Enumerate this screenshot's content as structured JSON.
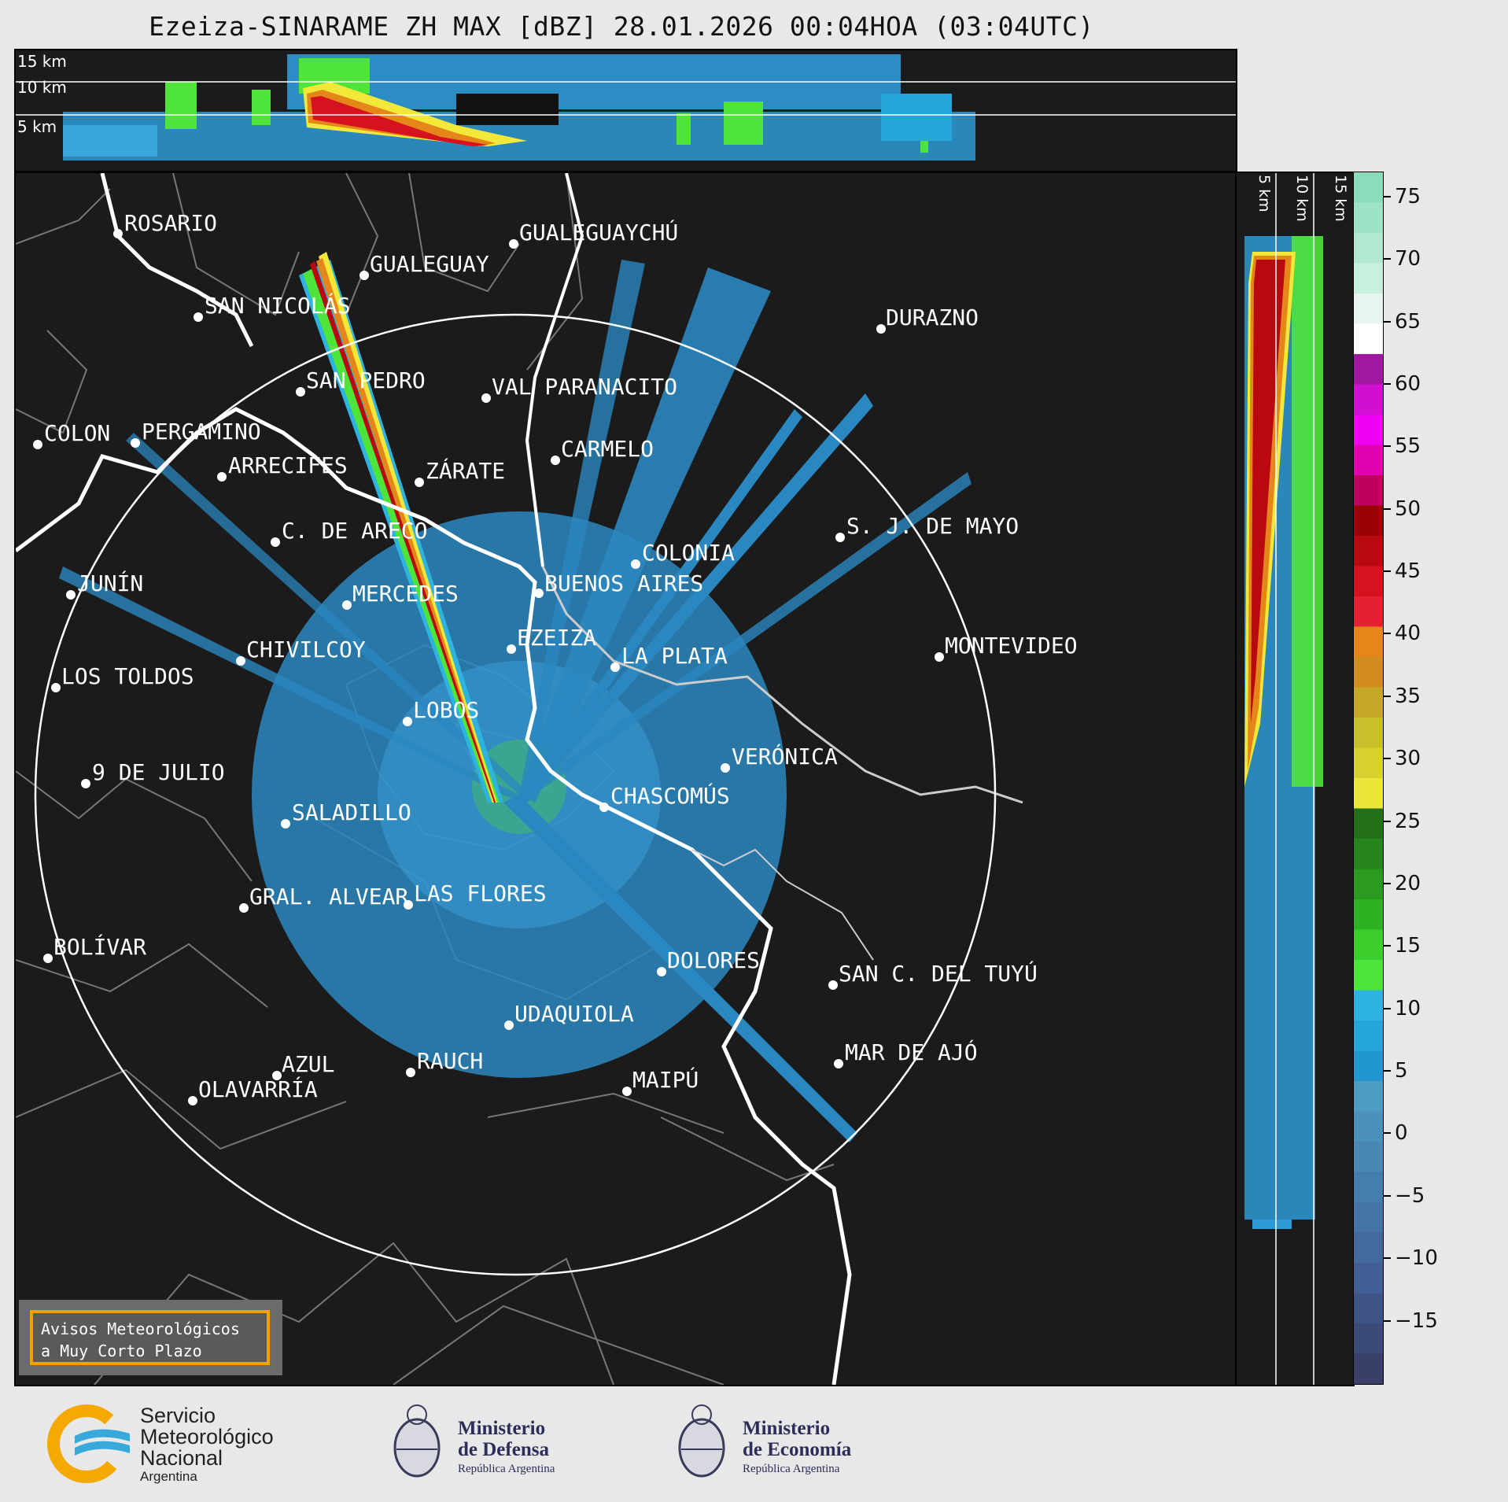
{
  "title": "Ezeiza-SINARAME ZH MAX [dBZ] 28.01.2026 00:04HOA (03:04UTC)",
  "top_profile": {
    "km_labels": [
      "15 km",
      "10 km",
      "5 km"
    ]
  },
  "side_profile": {
    "km_labels": [
      "5 km",
      "10 km",
      "15 km"
    ]
  },
  "cities": [
    {
      "name": "ROSARIO"
    },
    {
      "name": "GUALEGUAYCHÚ"
    },
    {
      "name": "GUALEGUAY"
    },
    {
      "name": "SAN NICOLÁS"
    },
    {
      "name": "DURAZNO"
    },
    {
      "name": "SAN PEDRO"
    },
    {
      "name": "VAL PARANACITO"
    },
    {
      "name": "COLON"
    },
    {
      "name": "PERGAMINO"
    },
    {
      "name": "CARMELO"
    },
    {
      "name": "ARRECIFES"
    },
    {
      "name": "ZÁRATE"
    },
    {
      "name": "S. J. DE MAYO"
    },
    {
      "name": "C. DE ARECO"
    },
    {
      "name": "COLONIA"
    },
    {
      "name": "JUNÍN"
    },
    {
      "name": "BUENOS AIRES"
    },
    {
      "name": "MERCEDES"
    },
    {
      "name": "EZEIZA"
    },
    {
      "name": "MONTEVIDEO"
    },
    {
      "name": "CHIVILCOY"
    },
    {
      "name": "LA PLATA"
    },
    {
      "name": "LOS TOLDOS"
    },
    {
      "name": "LOBOS"
    },
    {
      "name": "VERÓNICA"
    },
    {
      "name": "9 DE JULIO"
    },
    {
      "name": "CHASCOMÚS"
    },
    {
      "name": "SALADILLO"
    },
    {
      "name": "GRAL. ALVEAR"
    },
    {
      "name": "LAS FLORES"
    },
    {
      "name": "BOLÍVAR"
    },
    {
      "name": "DOLORES"
    },
    {
      "name": "SAN C. DEL TUYÚ"
    },
    {
      "name": "UDAQUIOLA"
    },
    {
      "name": "MAR DE AJÓ"
    },
    {
      "name": "AZUL"
    },
    {
      "name": "RAUCH"
    },
    {
      "name": "OLAVARRÍA"
    },
    {
      "name": "MAIPÚ"
    }
  ],
  "colorbar": {
    "unit": "dBZ",
    "ticks": [
      "75",
      "70",
      "65",
      "60",
      "55",
      "50",
      "45",
      "40",
      "35",
      "30",
      "25",
      "20",
      "15",
      "10",
      "5",
      "0",
      "−5",
      "−10",
      "−15"
    ],
    "colors": [
      "#3a3f6a",
      "#3c4a78",
      "#3f5486",
      "#415f94",
      "#43699f",
      "#4473a8",
      "#457dae",
      "#4987b5",
      "#4b92bb",
      "#4d9dc2",
      "#2196cf",
      "#26a6d8",
      "#2eb2e0",
      "#4ee43a",
      "#3cce2d",
      "#2fb221",
      "#2a9a20",
      "#25841c",
      "#247018",
      "#ece63a",
      "#d8d230",
      "#c9c02c",
      "#c6a728",
      "#d28b1e",
      "#e4861a",
      "#e62033",
      "#d5121e",
      "#b9080f",
      "#990206",
      "#c0005e",
      "#e000b0",
      "#f000f0",
      "#d010d0",
      "#a018a0",
      "#ffffff",
      "#e6f6ef",
      "#c9efdf",
      "#b2e8d2",
      "#9ee3c6",
      "#8bdcbb"
    ],
    "min": -20,
    "max": 77
  },
  "warning": {
    "line1": "Avisos Meteorológicos",
    "line2": "a Muy Corto Plazo"
  },
  "logos": {
    "smn": {
      "line1": "Servicio",
      "line2": "Meteorológico",
      "line3": "Nacional",
      "line4": "Argentina"
    },
    "defensa": {
      "line1": "Ministerio",
      "line2": "de Defensa",
      "line3": "República Argentina"
    },
    "economia": {
      "line1": "Ministerio",
      "line2": "de Economía",
      "line3": "República Argentina"
    }
  }
}
